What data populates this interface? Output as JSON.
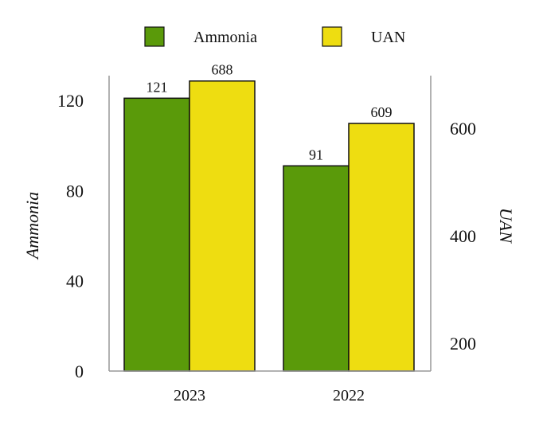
{
  "chart_data": {
    "type": "bar",
    "categories": [
      "2023",
      "2022"
    ],
    "series": [
      {
        "name": "Ammonia",
        "axis": "left",
        "color": "#5a9a0a",
        "values": [
          121,
          91
        ]
      },
      {
        "name": "UAN",
        "axis": "right",
        "color": "#eedd11",
        "values": [
          688,
          609
        ]
      }
    ],
    "ylabel_left": "Ammonia",
    "ylabel_right": "UAN",
    "ylim_left": [
      0,
      131
    ],
    "yticks_left": [
      "0",
      "40",
      "80",
      "120"
    ],
    "ylim_right": [
      148,
      698
    ],
    "yticks_right": [
      "200",
      "400",
      "600"
    ],
    "legend_position": "top",
    "grid": false
  }
}
